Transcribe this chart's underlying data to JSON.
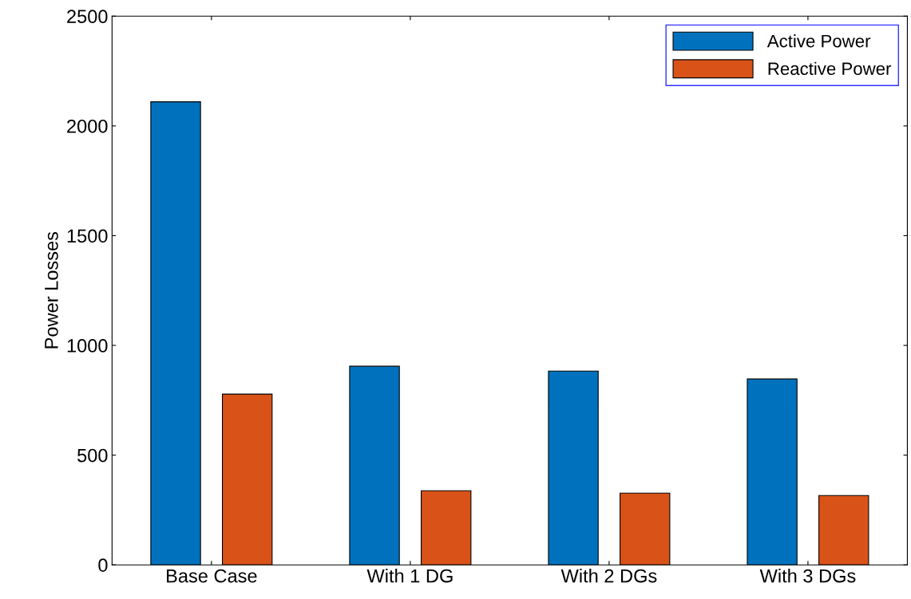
{
  "chart_data": {
    "type": "bar",
    "ylabel": "Power Losses",
    "categories": [
      "Base Case",
      "With 1 DG",
      "With 2 DGs",
      "With 3 DGs"
    ],
    "series": [
      {
        "name": "Active Power",
        "color": "#0072bd",
        "values": [
          2110,
          905,
          883,
          847
        ]
      },
      {
        "name": "Reactive Power",
        "color": "#d95319",
        "values": [
          778,
          338,
          327,
          316
        ]
      }
    ],
    "ylim": [
      0,
      2500
    ],
    "yticks": [
      0,
      500,
      1000,
      1500,
      2000,
      2500
    ],
    "grid": false,
    "legend": "top right"
  }
}
